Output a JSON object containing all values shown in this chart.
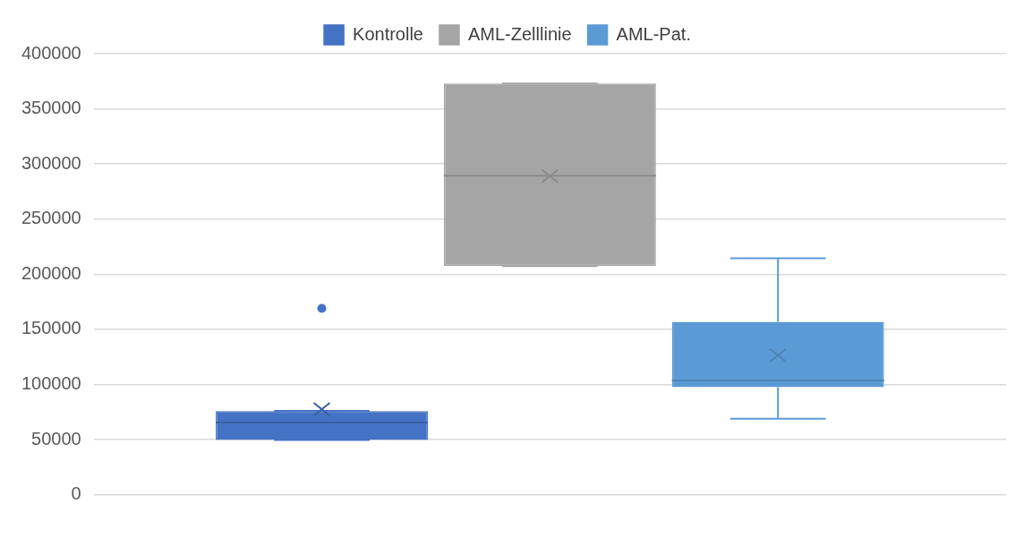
{
  "chart_data": {
    "type": "box",
    "categories": [
      null
    ],
    "series": [
      {
        "name": "Kontrolle",
        "color": "#4472c4",
        "boxes": [
          {
            "low": 49700,
            "q1": 49700,
            "median": 65400,
            "q3": 75800,
            "high": 76000,
            "mean": 77500,
            "outliers": [
              169000
            ]
          }
        ]
      },
      {
        "name": "AML-Zelllinie",
        "color": "#a5a5a5",
        "boxes": [
          {
            "low": 207400,
            "q1": 207400,
            "median": 289300,
            "q3": 373000,
            "high": 373000,
            "mean": 289000
          }
        ]
      },
      {
        "name": "AML-Pat.",
        "color": "#5b9bd5",
        "boxes": [
          {
            "low": 68800,
            "q1": 97600,
            "median": 103700,
            "q3": 156900,
            "high": 214400,
            "mean": 126400
          }
        ]
      }
    ],
    "ylim": [
      0,
      400000
    ],
    "yticks": [
      0,
      50000,
      100000,
      150000,
      200000,
      250000,
      300000,
      350000,
      400000
    ],
    "grid": "y",
    "legend": "top"
  }
}
